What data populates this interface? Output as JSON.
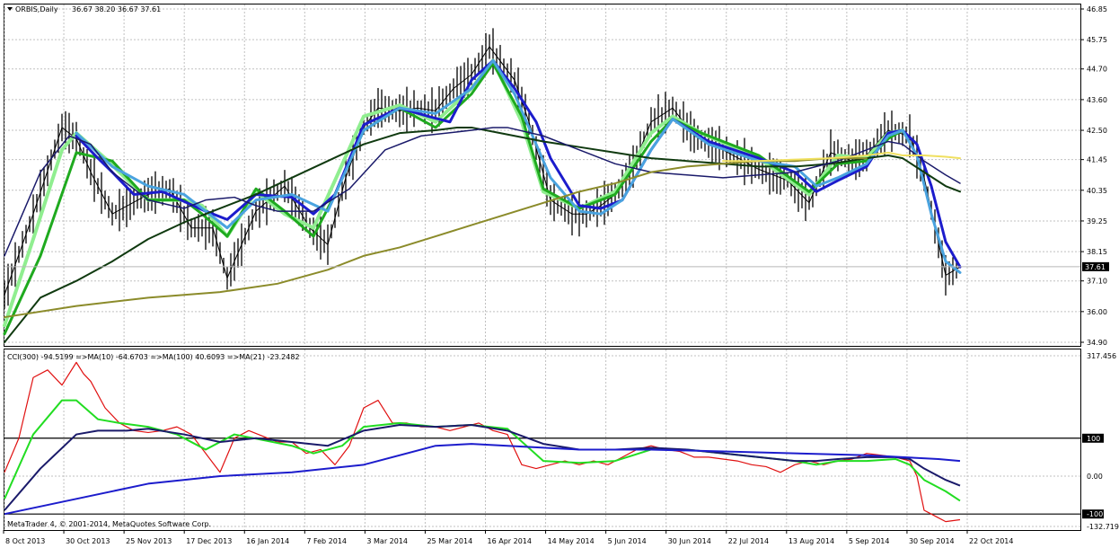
{
  "header": {
    "title": "ORBIS,Daily",
    "ohlc": "36.67 38.20 36.67 37.61"
  },
  "indicator": {
    "label": "CCI(300) -94.5199 =>MA(10) -64.6703 =>MA(100) 40.6093 =>MA(21) -23.2482"
  },
  "footer": {
    "copyright": "MetaTrader 4, © 2001-2014, MetaQuotes Software Corp."
  },
  "colors": {
    "grid": "#c0c0c0",
    "candle": "#000000",
    "price_line": "#b7b7b7",
    "price_tag_bg": "#000000",
    "price_tag_text": "#ffffff"
  },
  "chart_data": [
    {
      "type": "line",
      "panel": "price",
      "y_ticks": [
        "46.85",
        "45.75",
        "44.70",
        "43.60",
        "42.50",
        "41.45",
        "40.35",
        "39.25",
        "38.15",
        "37.10",
        "36.00",
        "34.90"
      ],
      "ylim": [
        34.9,
        46.85
      ],
      "current_price": "37.61",
      "x_ticks": [
        "8 Oct 2013",
        "30 Oct 2013",
        "25 Nov 2013",
        "17 Dec 2013",
        "16 Jan 2014",
        "7 Feb 2014",
        "3 Mar 2014",
        "25 Mar 2014",
        "16 Apr 2014",
        "14 May 2014",
        "5 Jun 2014",
        "30 Jun 2014",
        "22 Jul 2014",
        "13 Aug 2014",
        "5 Sep 2014",
        "30 Sep 2014",
        "22 Oct 2014"
      ],
      "x_index_range": [
        0,
        268
      ],
      "series": [
        {
          "color": "#000000",
          "style": "candlestick_close",
          "x": [
            0,
            8,
            16,
            20,
            24,
            30,
            40,
            46,
            52,
            58,
            62,
            70,
            78,
            85,
            90,
            95,
            100,
            104,
            110,
            115,
            120,
            125,
            130,
            135,
            142,
            146,
            152,
            158,
            162,
            166,
            170,
            175,
            180,
            186,
            192,
            200,
            210,
            218,
            224,
            230,
            236,
            240,
            246,
            252,
            256,
            262,
            266
          ],
          "y": [
            36.6,
            39.5,
            42.6,
            42.2,
            41.0,
            39.5,
            40.2,
            40.4,
            39.0,
            39.0,
            37.2,
            39.6,
            40.5,
            39.0,
            38.4,
            40.8,
            42.6,
            43.3,
            43.2,
            43.3,
            43.2,
            44.0,
            44.5,
            45.5,
            44.3,
            42.8,
            40.0,
            39.5,
            39.5,
            39.8,
            40.2,
            41.2,
            42.8,
            43.3,
            42.3,
            41.8,
            41.1,
            40.7,
            39.9,
            41.7,
            41.4,
            41.6,
            42.5,
            42.3,
            40.8,
            37.3,
            37.6
          ]
        },
        {
          "color": "#90ee90",
          "style": "ma_fast_light",
          "x": [
            0,
            8,
            16,
            20,
            28,
            40,
            50,
            55,
            62,
            70,
            78,
            86,
            92,
            100,
            110,
            120,
            130,
            136,
            144,
            150,
            160,
            170,
            180,
            186,
            194,
            210,
            224,
            232,
            240,
            246,
            250
          ],
          "y": [
            35.5,
            38.6,
            41.8,
            42.4,
            41.5,
            40.0,
            40.0,
            39.8,
            38.7,
            40.3,
            39.5,
            39.0,
            40.7,
            43.0,
            43.4,
            42.8,
            44.0,
            45.0,
            42.8,
            40.3,
            39.7,
            40.3,
            42.4,
            43.0,
            42.4,
            41.5,
            40.2,
            41.6,
            41.5,
            42.4,
            42.5
          ]
        },
        {
          "color": "#1faa1f",
          "style": "ma_fast_dark",
          "x": [
            0,
            10,
            20,
            30,
            40,
            50,
            55,
            62,
            70,
            78,
            86,
            92,
            100,
            110,
            120,
            130,
            136,
            144,
            150,
            160,
            170,
            180,
            186,
            194,
            210,
            224,
            232,
            240,
            246,
            250
          ],
          "y": [
            35.2,
            38.0,
            41.7,
            41.4,
            40.0,
            40.0,
            39.5,
            38.7,
            40.4,
            39.6,
            38.7,
            40.2,
            42.5,
            43.3,
            42.6,
            43.8,
            44.9,
            43.0,
            40.4,
            39.7,
            40.2,
            42.1,
            42.9,
            42.4,
            41.6,
            40.3,
            41.3,
            41.4,
            42.2,
            42.5
          ]
        },
        {
          "color": "#1c1ccc",
          "style": "ma_slow_blue",
          "x": [
            20,
            26,
            30,
            36,
            44,
            56,
            62,
            70,
            80,
            86,
            92,
            100,
            110,
            118,
            124,
            130,
            136,
            142,
            148,
            152,
            160,
            166,
            172,
            180,
            186,
            196,
            210,
            220,
            226,
            232,
            240,
            246,
            250,
            254,
            258,
            262,
            266
          ],
          "y": [
            42.3,
            41.5,
            41.0,
            40.2,
            40.3,
            39.6,
            39.3,
            40.2,
            40.1,
            39.5,
            40.2,
            42.7,
            43.3,
            43.0,
            42.8,
            44.3,
            45.0,
            44.0,
            42.8,
            41.5,
            39.8,
            39.7,
            40.0,
            41.8,
            42.9,
            42.1,
            41.5,
            41.0,
            40.3,
            40.7,
            41.2,
            42.4,
            42.5,
            42.0,
            40.5,
            38.5,
            37.6
          ]
        },
        {
          "color": "#4aa3df",
          "style": "ma_slow_lightblue",
          "x": [
            20,
            30,
            40,
            50,
            62,
            70,
            80,
            90,
            100,
            110,
            120,
            130,
            136,
            142,
            148,
            152,
            160,
            166,
            172,
            180,
            186,
            196,
            210,
            220,
            226,
            232,
            240,
            246,
            250,
            254,
            258,
            262,
            266
          ],
          "y": [
            42.4,
            41.2,
            40.5,
            40.2,
            39.0,
            40.0,
            40.2,
            39.6,
            42.5,
            43.3,
            43.1,
            44.0,
            45.0,
            43.8,
            42.0,
            40.8,
            39.6,
            39.5,
            40.0,
            41.8,
            42.9,
            42.0,
            41.4,
            41.2,
            40.5,
            40.8,
            41.3,
            42.3,
            42.5,
            41.6,
            39.5,
            37.8,
            37.4
          ]
        },
        {
          "color": "#103a10",
          "style": "ma_medium",
          "x": [
            0,
            10,
            20,
            30,
            40,
            50,
            60,
            70,
            80,
            90,
            100,
            110,
            120,
            126,
            130,
            138,
            150,
            160,
            170,
            180,
            190,
            200,
            210,
            220,
            230,
            240,
            246,
            250,
            256,
            262,
            266
          ],
          "y": [
            34.9,
            36.5,
            37.1,
            37.8,
            38.6,
            39.2,
            39.7,
            40.2,
            40.8,
            41.4,
            42.0,
            42.4,
            42.5,
            42.6,
            42.6,
            42.4,
            42.1,
            41.9,
            41.7,
            41.5,
            41.4,
            41.3,
            41.2,
            41.2,
            41.3,
            41.5,
            41.6,
            41.5,
            41.0,
            40.5,
            40.3
          ]
        },
        {
          "color": "#1a1a6a",
          "style": "ma_navy",
          "x": [
            0,
            10,
            18,
            24,
            30,
            40,
            50,
            56,
            64,
            70,
            76,
            86,
            96,
            106,
            116,
            130,
            136,
            140,
            150,
            160,
            170,
            180,
            190,
            200,
            210,
            220,
            226,
            232,
            240,
            246,
            250,
            256,
            262,
            266
          ],
          "y": [
            38.0,
            41.0,
            42.3,
            42.0,
            41.0,
            40.0,
            39.7,
            40.0,
            40.1,
            39.8,
            39.6,
            39.6,
            40.4,
            41.8,
            42.3,
            42.5,
            42.6,
            42.6,
            42.3,
            41.8,
            41.3,
            41.0,
            40.9,
            40.8,
            40.9,
            41.0,
            41.2,
            41.4,
            41.8,
            42.1,
            42.0,
            41.4,
            40.9,
            40.6
          ]
        },
        {
          "color": "#8b8b2a",
          "style": "ma_long_olive",
          "x": [
            0,
            20,
            40,
            60,
            76,
            90,
            100,
            110,
            120,
            130,
            140,
            150,
            160,
            170,
            180,
            190,
            200,
            210,
            220,
            230,
            240
          ],
          "y": [
            35.8,
            36.2,
            36.5,
            36.7,
            37.0,
            37.5,
            38.0,
            38.3,
            38.7,
            39.1,
            39.5,
            39.9,
            40.3,
            40.6,
            41.0,
            41.2,
            41.3,
            41.4,
            41.4,
            41.5,
            41.5
          ]
        },
        {
          "color": "#f0e060",
          "style": "ma_long_yellow",
          "x": [
            200,
            210,
            220,
            230,
            240,
            246,
            250,
            256,
            262,
            266
          ],
          "y": [
            41.4,
            41.4,
            41.45,
            41.5,
            41.6,
            41.7,
            41.6,
            41.6,
            41.55,
            41.5
          ]
        }
      ]
    },
    {
      "type": "line",
      "panel": "indicator",
      "y_ticks": [
        "317.456",
        "100",
        "0.00",
        "-100",
        "-132.719"
      ],
      "ylim": [
        -132.719,
        317.456
      ],
      "levels": [
        100,
        -100
      ],
      "series": [
        {
          "color": "#e01010",
          "style": "cci",
          "x": [
            0,
            4,
            8,
            12,
            16,
            20,
            22,
            24,
            28,
            32,
            36,
            40,
            44,
            48,
            52,
            56,
            60,
            64,
            68,
            72,
            76,
            80,
            84,
            88,
            92,
            96,
            100,
            104,
            108,
            112,
            116,
            120,
            124,
            128,
            132,
            136,
            140,
            144,
            148,
            152,
            156,
            160,
            164,
            168,
            172,
            176,
            180,
            184,
            188,
            192,
            196,
            200,
            204,
            208,
            212,
            216,
            220,
            224,
            228,
            232,
            236,
            240,
            244,
            248,
            252,
            254,
            256,
            258,
            260,
            262,
            266
          ],
          "y": [
            10,
            100,
            260,
            280,
            240,
            300,
            270,
            250,
            180,
            140,
            120,
            115,
            120,
            130,
            110,
            60,
            10,
            100,
            120,
            105,
            90,
            90,
            60,
            70,
            30,
            80,
            180,
            200,
            140,
            140,
            130,
            130,
            120,
            130,
            140,
            120,
            110,
            30,
            20,
            30,
            40,
            30,
            40,
            30,
            50,
            70,
            80,
            70,
            65,
            50,
            50,
            45,
            40,
            30,
            25,
            10,
            30,
            40,
            30,
            40,
            45,
            60,
            55,
            50,
            40,
            0,
            -90,
            -100,
            -110,
            -120,
            -115
          ]
        },
        {
          "color": "#22dd22",
          "style": "cci_ma10",
          "x": [
            0,
            8,
            16,
            20,
            26,
            32,
            40,
            48,
            56,
            64,
            72,
            80,
            86,
            94,
            100,
            110,
            120,
            130,
            140,
            150,
            160,
            170,
            180,
            190,
            200,
            210,
            220,
            226,
            232,
            240,
            248,
            252,
            256,
            262,
            266
          ],
          "y": [
            -60,
            110,
            200,
            200,
            150,
            140,
            130,
            110,
            70,
            110,
            95,
            80,
            60,
            80,
            130,
            140,
            130,
            135,
            125,
            40,
            35,
            40,
            70,
            70,
            60,
            50,
            40,
            30,
            40,
            40,
            45,
            30,
            -10,
            -40,
            -65
          ]
        },
        {
          "color": "#1a1a6a",
          "style": "cci_ma21",
          "x": [
            0,
            10,
            20,
            26,
            34,
            40,
            50,
            60,
            70,
            80,
            90,
            100,
            110,
            120,
            130,
            140,
            150,
            160,
            170,
            180,
            190,
            200,
            210,
            220,
            226,
            232,
            240,
            248,
            252,
            256,
            262,
            266
          ],
          "y": [
            -90,
            20,
            110,
            120,
            120,
            125,
            110,
            90,
            100,
            90,
            80,
            120,
            135,
            130,
            135,
            120,
            85,
            70,
            70,
            75,
            70,
            60,
            50,
            40,
            40,
            45,
            50,
            50,
            45,
            20,
            -10,
            -25
          ]
        },
        {
          "color": "#1c1ccc",
          "style": "cci_ma100",
          "x": [
            0,
            20,
            40,
            60,
            80,
            100,
            120,
            130,
            140,
            160,
            180,
            200,
            220,
            240,
            250,
            260,
            266
          ],
          "y": [
            -100,
            -60,
            -20,
            0,
            10,
            30,
            80,
            85,
            80,
            70,
            70,
            65,
            60,
            55,
            50,
            45,
            40
          ]
        }
      ]
    }
  ]
}
